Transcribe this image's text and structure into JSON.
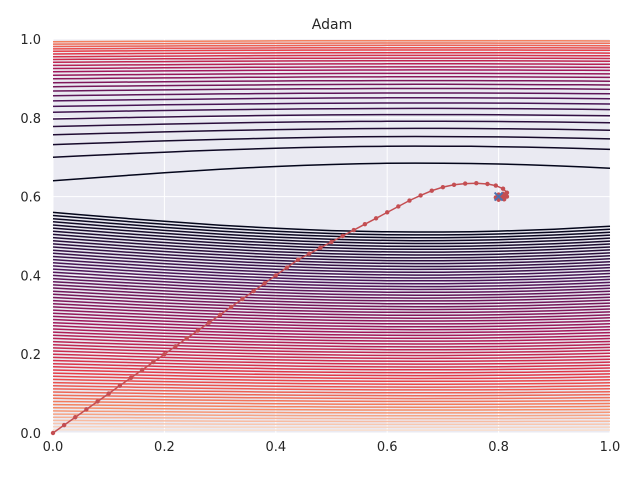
{
  "chart_data": {
    "type": "line",
    "title": "Adam",
    "xlabel": "",
    "ylabel": "",
    "xlim": [
      0.0,
      1.0
    ],
    "ylim": [
      0.0,
      1.0
    ],
    "x_ticks": [
      "0.0",
      "0.2",
      "0.4",
      "0.6",
      "0.8",
      "1.0"
    ],
    "y_ticks": [
      "0.0",
      "0.2",
      "0.4",
      "0.6",
      "0.8",
      "1.0"
    ],
    "grid": true,
    "background_color": "#eaeaf2",
    "contour_colormap": "rocket",
    "optimum_marker": {
      "symbol": "x",
      "x": 0.8,
      "y": 0.6,
      "color": "#4c72b0"
    },
    "series": [
      {
        "color": "#c44e52",
        "marker": "o",
        "x": [
          0.0,
          0.02,
          0.04,
          0.06,
          0.08,
          0.1,
          0.12,
          0.14,
          0.16,
          0.18,
          0.2,
          0.22,
          0.24,
          0.26,
          0.28,
          0.3,
          0.32,
          0.34,
          0.36,
          0.38,
          0.4,
          0.42,
          0.44,
          0.46,
          0.48,
          0.5,
          0.52,
          0.54,
          0.56,
          0.58,
          0.6,
          0.62,
          0.64,
          0.66,
          0.68,
          0.7,
          0.72,
          0.74,
          0.76,
          0.78,
          0.795,
          0.808,
          0.815,
          0.815,
          0.81,
          0.8,
          0.795,
          0.8,
          0.808,
          0.812,
          0.81,
          0.805
        ],
        "y": [
          0.0,
          0.02,
          0.04,
          0.06,
          0.08,
          0.1,
          0.12,
          0.14,
          0.16,
          0.18,
          0.2,
          0.22,
          0.24,
          0.26,
          0.28,
          0.3,
          0.32,
          0.34,
          0.36,
          0.38,
          0.4,
          0.42,
          0.44,
          0.455,
          0.47,
          0.485,
          0.5,
          0.515,
          0.53,
          0.545,
          0.56,
          0.575,
          0.59,
          0.603,
          0.615,
          0.624,
          0.63,
          0.633,
          0.634,
          0.632,
          0.628,
          0.62,
          0.61,
          0.6,
          0.593,
          0.592,
          0.598,
          0.605,
          0.607,
          0.603,
          0.598,
          0.6
        ]
      }
    ]
  }
}
